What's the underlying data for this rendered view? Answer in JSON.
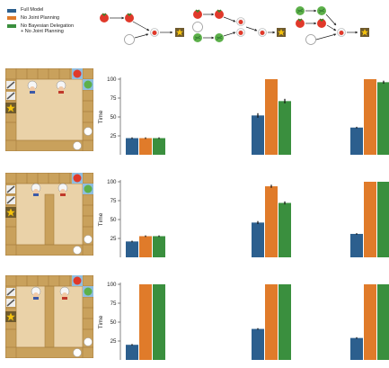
{
  "legend": {
    "items": [
      {
        "label": "Full Model",
        "color": "#2c5f8e"
      },
      {
        "label": "No Joint Planning",
        "color": "#e07b2a"
      },
      {
        "label": "No Bayesian Delegation\n+ No Joint Planning",
        "color": "#3a8f3e"
      }
    ]
  },
  "recipes": [
    {
      "name": "tomato",
      "icons": [
        "tomato-icon",
        "plate-icon",
        "star-icon"
      ]
    },
    {
      "name": "tomato-lettuce",
      "icons": [
        "tomato-icon",
        "lettuce-icon",
        "plate-icon",
        "star-icon"
      ]
    },
    {
      "name": "salad",
      "icons": [
        "lettuce-icon",
        "tomato-icon",
        "plate-icon",
        "star-icon"
      ]
    }
  ],
  "colors": {
    "wall": "#c9a15c",
    "wall_dark": "#a9803f",
    "floor": "#ead2a8",
    "counter_blue": "#8fbde0",
    "text": "#222222"
  },
  "chart_data": [
    {
      "type": "bar",
      "ylabel": "Time",
      "ylim": [
        0,
        100
      ],
      "yticks": [
        25,
        50,
        75,
        100
      ],
      "series_names": [
        "Full Model",
        "No Joint Planning",
        "No Bayesian Delegation + No Joint Planning"
      ],
      "groups": [
        {
          "values": [
            22,
            22,
            22
          ],
          "errors": [
            1,
            1,
            1
          ]
        },
        {
          "values": [
            52,
            100,
            71
          ],
          "errors": [
            3,
            0,
            3
          ]
        },
        {
          "values": [
            36,
            100,
            96
          ],
          "errors": [
            1,
            0,
            2
          ]
        }
      ]
    },
    {
      "type": "bar",
      "ylabel": "Time",
      "ylim": [
        0,
        100
      ],
      "yticks": [
        25,
        50,
        75,
        100
      ],
      "series_names": [
        "Full Model",
        "No Joint Planning",
        "No Bayesian Delegation + No Joint Planning"
      ],
      "groups": [
        {
          "values": [
            21,
            28,
            28
          ],
          "errors": [
            1,
            1,
            1
          ]
        },
        {
          "values": [
            46,
            94,
            72
          ],
          "errors": [
            2,
            2,
            2
          ]
        },
        {
          "values": [
            31,
            100,
            100
          ],
          "errors": [
            1,
            0,
            0
          ]
        }
      ]
    },
    {
      "type": "bar",
      "ylabel": "Time",
      "ylim": [
        0,
        100
      ],
      "yticks": [
        25,
        50,
        75,
        100
      ],
      "series_names": [
        "Full Model",
        "No Joint Planning",
        "No Bayesian Delegation + No Joint Planning"
      ],
      "groups": [
        {
          "values": [
            20,
            100,
            100
          ],
          "errors": [
            1,
            0,
            0
          ]
        },
        {
          "values": [
            41,
            100,
            100
          ],
          "errors": [
            1,
            0,
            0
          ]
        },
        {
          "values": [
            29,
            100,
            100
          ],
          "errors": [
            1,
            0,
            0
          ]
        }
      ]
    }
  ]
}
